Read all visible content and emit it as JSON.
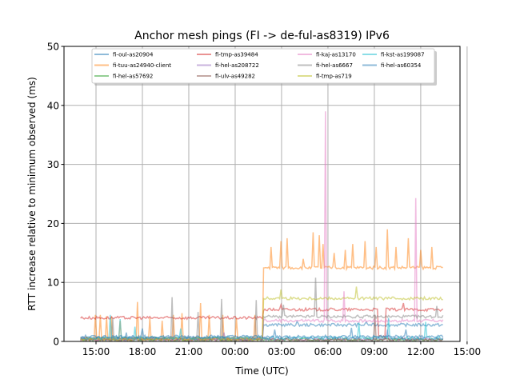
{
  "chart_data": {
    "type": "line",
    "title": "Anchor mesh pings (FI -> de-ful-as8319) IPv6",
    "xlabel": "Time (UTC)",
    "ylabel": "RTT increase relative to minimum observed (ms)",
    "x_unit": "hours since 12:00 of first day",
    "xlim": [
      0.93,
      26.54
    ],
    "ylim": [
      0,
      50
    ],
    "grid": true,
    "legend_placement": "upper-center",
    "x_ticks": [
      {
        "value": 3,
        "label": "15:00"
      },
      {
        "value": 6,
        "label": "18:00"
      },
      {
        "value": 9,
        "label": "21:00"
      },
      {
        "value": 12,
        "label": "00:00"
      },
      {
        "value": 15,
        "label": "03:00"
      },
      {
        "value": 18,
        "label": "06:00"
      },
      {
        "value": 21,
        "label": "09:00"
      },
      {
        "value": 24,
        "label": "12:00"
      },
      {
        "value": 27,
        "label": "15:00"
      }
    ],
    "y_ticks": [
      {
        "value": 0,
        "label": "0"
      },
      {
        "value": 10,
        "label": "10"
      },
      {
        "value": 20,
        "label": "20"
      },
      {
        "value": 30,
        "label": "30"
      },
      {
        "value": 40,
        "label": "40"
      },
      {
        "value": 50,
        "label": "50"
      }
    ],
    "series": [
      {
        "name": "fi-oul-as20904",
        "color": "#1f77b4",
        "base": [
          [
            2.0,
            13.8,
            0.5
          ],
          [
            13.8,
            25.5,
            2.8
          ]
        ],
        "spikes": [
          [
            5.0,
            1.5
          ],
          [
            16.0,
            3.4
          ],
          [
            20.5,
            3.3
          ]
        ]
      },
      {
        "name": "fi-tuu-as24940-client",
        "color": "#ff7f0e",
        "base": [
          [
            2.0,
            13.8,
            0.5
          ],
          [
            13.8,
            25.5,
            12.5
          ]
        ],
        "spikes": [
          [
            3.0,
            4.5
          ],
          [
            3.3,
            4.5
          ],
          [
            3.7,
            4.3
          ],
          [
            4.0,
            4.2
          ],
          [
            4.6,
            3.5
          ],
          [
            5.7,
            6.7
          ],
          [
            6.5,
            4.0
          ],
          [
            7.3,
            3.5
          ],
          [
            8.0,
            4.5
          ],
          [
            8.6,
            4.8
          ],
          [
            9.8,
            6.5
          ],
          [
            10.3,
            4.5
          ],
          [
            11.2,
            4.5
          ],
          [
            12.1,
            4.0
          ],
          [
            13.3,
            4.5
          ],
          [
            14.3,
            16
          ],
          [
            15.0,
            17
          ],
          [
            15.4,
            17.5
          ],
          [
            16.4,
            14
          ],
          [
            17.0,
            18.5
          ],
          [
            17.4,
            18
          ],
          [
            17.7,
            16.5
          ],
          [
            18.4,
            15
          ],
          [
            19.1,
            15.5
          ],
          [
            19.6,
            16.5
          ],
          [
            20.4,
            17
          ],
          [
            21.1,
            16
          ],
          [
            21.8,
            19
          ],
          [
            22.4,
            16
          ],
          [
            23.2,
            17.5
          ],
          [
            24.0,
            15.5
          ],
          [
            24.7,
            16
          ]
        ]
      },
      {
        "name": "fi-hel-as57692",
        "color": "#2ca02c",
        "base": [
          [
            2.0,
            25.5,
            0.3
          ]
        ],
        "spikes": []
      },
      {
        "name": "fi-tmp-as39484",
        "color": "#d62728",
        "base": [
          [
            2.0,
            13.8,
            4.0
          ],
          [
            13.8,
            21.2,
            5.4
          ],
          [
            21.2,
            21.7,
            0.8
          ],
          [
            21.7,
            25.5,
            5.4
          ]
        ],
        "spikes": [
          [
            15.0,
            6.2
          ],
          [
            22.9,
            6.5
          ]
        ]
      },
      {
        "name": "fi-hel-as208722",
        "color": "#9467bd",
        "base": [
          [
            2.0,
            25.5,
            0.4
          ]
        ],
        "spikes": [
          [
            11.3,
            1.5
          ],
          [
            21.8,
            2.0
          ]
        ]
      },
      {
        "name": "fi-ulv-as49282",
        "color": "#8c564b",
        "base": [
          [
            2.0,
            25.5,
            0.3
          ]
        ],
        "spikes": [
          [
            21.0,
            4.5
          ]
        ]
      },
      {
        "name": "fi-kaj-as13170",
        "color": "#e377c2",
        "base": [
          [
            2.0,
            13.8,
            0.4
          ],
          [
            13.8,
            25.5,
            3.5
          ]
        ],
        "spikes": [
          [
            17.85,
            39
          ],
          [
            19.0,
            8.5
          ],
          [
            23.69,
            24.3
          ]
        ]
      },
      {
        "name": "fi-hel-as6667",
        "color": "#7f7f7f",
        "base": [
          [
            2.0,
            13.8,
            0.5
          ],
          [
            13.8,
            25.5,
            4.2
          ]
        ],
        "spikes": [
          [
            4.1,
            4.0
          ],
          [
            7.9,
            7.5
          ],
          [
            9.6,
            5.0
          ],
          [
            11.1,
            7.2
          ],
          [
            13.4,
            7.0
          ],
          [
            17.2,
            10.8
          ],
          [
            15.1,
            6.2
          ],
          [
            25.0,
            6.0
          ]
        ]
      },
      {
        "name": "fi-tmp-as719",
        "color": "#bcbd22",
        "base": [
          [
            2.0,
            13.8,
            0.4
          ],
          [
            13.8,
            25.5,
            7.3
          ]
        ],
        "spikes": [
          [
            15.0,
            8.8
          ],
          [
            19.8,
            9.3
          ]
        ]
      },
      {
        "name": "fi-kst-as199087",
        "color": "#17becf",
        "base": [
          [
            2.0,
            25.5,
            0.6
          ]
        ],
        "spikes": [
          [
            3.9,
            4.5
          ],
          [
            4.6,
            3.8
          ],
          [
            5.5,
            2.5
          ],
          [
            8.5,
            2.2
          ],
          [
            20.0,
            3.2
          ],
          [
            21.9,
            4.0
          ],
          [
            24.3,
            3.3
          ]
        ]
      },
      {
        "name": "fi-hel-as60354",
        "color": "#1f77b4",
        "base": [
          [
            2.0,
            25.5,
            0.8
          ]
        ],
        "spikes": [
          [
            6.0,
            2.2
          ],
          [
            14.6,
            2.0
          ],
          [
            19.5,
            2.3
          ],
          [
            23.0,
            2.0
          ]
        ]
      }
    ]
  }
}
